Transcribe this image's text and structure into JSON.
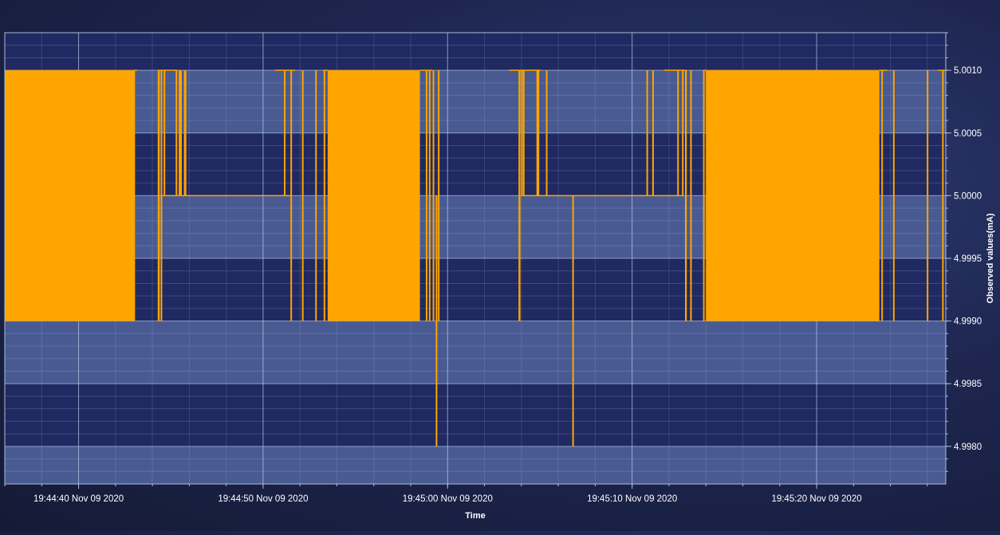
{
  "chart_data": {
    "type": "line",
    "title": "",
    "xlabel": "Time",
    "ylabel": "Observed values(mA)",
    "ylim": [
      4.9977,
      5.0013
    ],
    "xlim": [
      "19:44:36 Nov 09 2020",
      "19:45:27 Nov 09 2020"
    ],
    "x_ticks": [
      "19:44:40 Nov 09 2020",
      "19:44:50 Nov 09 2020",
      "19:45:00 Nov 09 2020",
      "19:45:10 Nov 09 2020",
      "19:45:20 Nov 09 2020"
    ],
    "y_ticks": [
      "4.9980",
      "4.9985",
      "4.9990",
      "4.9995",
      "5.0000",
      "5.0005",
      "5.0010"
    ],
    "y_axis_position": "right",
    "grid": true,
    "series": [
      {
        "color": "#ffa500",
        "levels": [
          4.999,
          5.0,
          5.001
        ],
        "segments": [
          {
            "start": "19:44:36.0",
            "end": "19:44:43.0",
            "min": 4.999,
            "max": 5.001,
            "dense": true
          },
          {
            "start": "19:44:43.0",
            "end": "19:44:44.5",
            "min": 4.999,
            "max": 5.001,
            "dense": false
          },
          {
            "start": "19:44:44.5",
            "end": "19:44:51.5",
            "min": 5.0,
            "max": 5.001,
            "dense": false
          },
          {
            "start": "19:44:51.5",
            "end": "19:44:53.5",
            "min": 4.999,
            "max": 5.001,
            "dense": false
          },
          {
            "start": "19:44:53.5",
            "end": "19:44:58.5",
            "min": 4.999,
            "max": 5.001,
            "dense": true
          },
          {
            "start": "19:44:58.5",
            "end": "19:45:04.0",
            "min": 4.999,
            "max": 5.001,
            "dense": false
          },
          {
            "start": "19:45:04.0",
            "end": "19:45:12.8",
            "min": 5.0,
            "max": 5.001,
            "dense": false
          },
          {
            "start": "19:45:12.8",
            "end": "19:45:14.0",
            "min": 4.999,
            "max": 5.001,
            "dense": false
          },
          {
            "start": "19:45:14.0",
            "end": "19:45:23.4",
            "min": 4.999,
            "max": 5.001,
            "dense": true
          },
          {
            "start": "19:45:23.4",
            "end": "19:45:27.0",
            "min": 4.999,
            "max": 5.001,
            "dense": false
          }
        ],
        "spikes": [
          {
            "time": "19:44:59.4",
            "min": 4.998
          },
          {
            "time": "19:45:06.8",
            "min": 4.998
          }
        ]
      }
    ]
  }
}
